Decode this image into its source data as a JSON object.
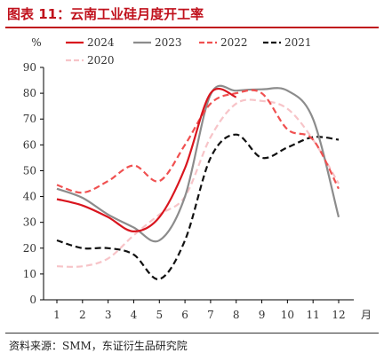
{
  "title": "图表 11：云南工业硅月度开工率",
  "source": "资料来源：SMM，东证衍生品研究院",
  "chart_data": {
    "type": "line",
    "ylabel": "%",
    "xlabel": "月",
    "ylim": [
      0,
      90
    ],
    "y_ticks": [
      0,
      10,
      20,
      30,
      40,
      50,
      60,
      70,
      80,
      90
    ],
    "x": [
      1,
      2,
      3,
      4,
      5,
      6,
      7,
      8,
      9,
      10,
      11,
      12
    ],
    "legend": "top",
    "grid": false,
    "series": [
      {
        "name": "2024",
        "color": "#d9151e",
        "dash": "",
        "values": [
          39,
          36.5,
          32,
          26.5,
          32,
          51,
          80,
          78.5,
          null,
          null,
          null,
          null
        ]
      },
      {
        "name": "2023",
        "color": "#8c8c8c",
        "dash": "",
        "values": [
          43,
          39.5,
          33,
          28,
          23,
          40,
          79.5,
          81,
          81.5,
          81,
          70,
          32
        ]
      },
      {
        "name": "2022",
        "color": "#f05050",
        "dash": "7,4",
        "values": [
          44.5,
          41.5,
          46,
          52,
          46,
          60,
          76,
          80,
          80,
          66,
          62,
          43
        ]
      },
      {
        "name": "2021",
        "color": "#111111",
        "dash": "7,4",
        "values": [
          23,
          20,
          20,
          17.5,
          8,
          23,
          55,
          64,
          55,
          59,
          63,
          62
        ]
      },
      {
        "name": "2020",
        "color": "#f7c4c8",
        "dash": "7,4",
        "values": [
          13,
          13,
          16,
          25,
          33,
          40,
          63,
          76,
          77,
          74,
          62,
          45
        ]
      }
    ]
  }
}
